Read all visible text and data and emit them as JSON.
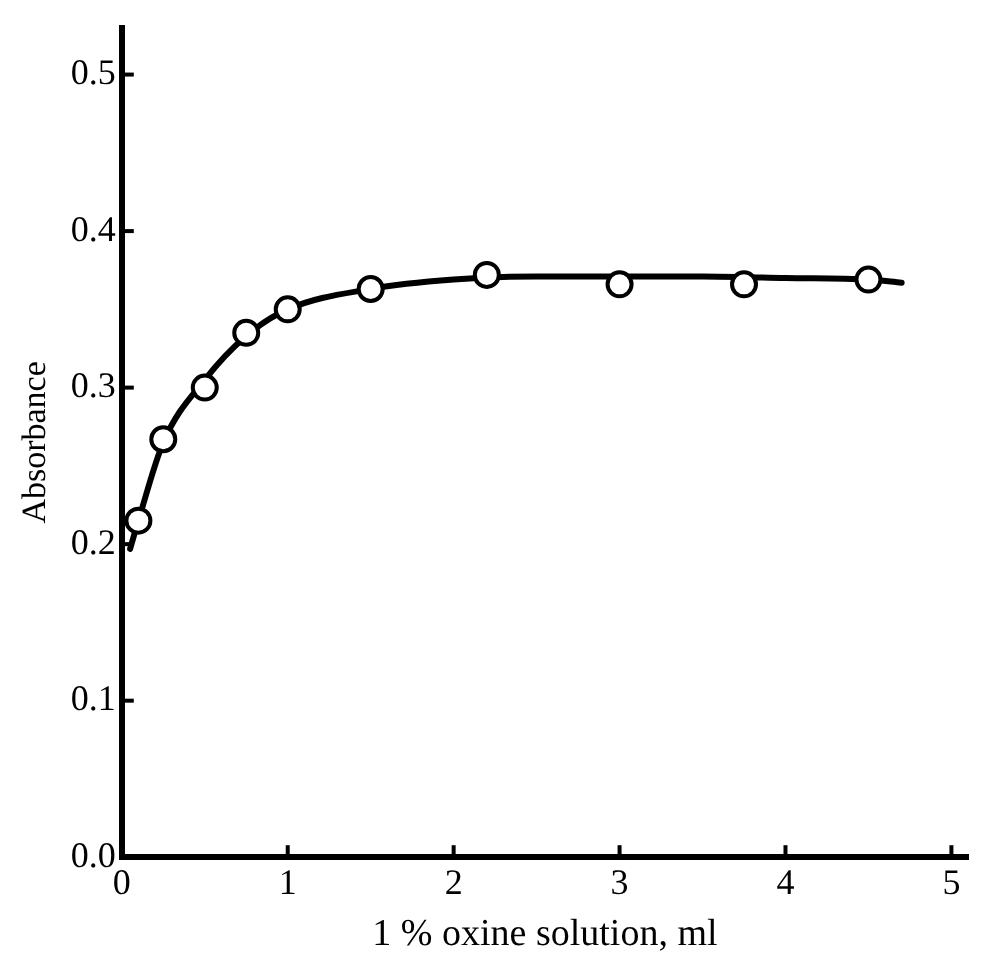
{
  "chart_data": {
    "type": "scatter",
    "xlabel": "1 % oxine solution, ml",
    "ylabel": "Absorbance",
    "xlim": [
      0,
      5.1
    ],
    "ylim": [
      0,
      0.53
    ],
    "xticks": [
      0,
      1,
      2,
      3,
      4,
      5
    ],
    "yticks": [
      {
        "value": 0,
        "label": "0.0"
      },
      {
        "value": 0.1,
        "label": "0.1"
      },
      {
        "value": 0.2,
        "label": "0.2"
      },
      {
        "value": 0.3,
        "label": "0.3"
      },
      {
        "value": 0.4,
        "label": "0.4"
      },
      {
        "value": 0.5,
        "label": "0.5"
      }
    ],
    "grid": false,
    "legend": false,
    "marker": "circle",
    "series": [
      {
        "type": "line",
        "color": "#000000",
        "marker": "none",
        "line_style": "solid",
        "x": [
          0.05,
          0.1,
          0.25,
          0.5,
          0.75,
          1.0,
          1.5,
          2.0,
          2.5,
          3.0,
          3.5,
          4.0,
          4.5,
          4.7
        ],
        "values": [
          0.197,
          0.215,
          0.265,
          0.305,
          0.333,
          0.35,
          0.363,
          0.369,
          0.371,
          0.371,
          0.371,
          0.37,
          0.369,
          0.367
        ]
      },
      {
        "type": "scatter",
        "color": "#000000",
        "x": [
          0.1,
          0.25,
          0.5,
          0.75,
          1.0,
          1.5,
          2.2,
          3.0,
          3.75,
          4.5
        ],
        "values": [
          0.215,
          0.267,
          0.3,
          0.335,
          0.35,
          0.363,
          0.372,
          0.366,
          0.366,
          0.369
        ]
      }
    ]
  }
}
